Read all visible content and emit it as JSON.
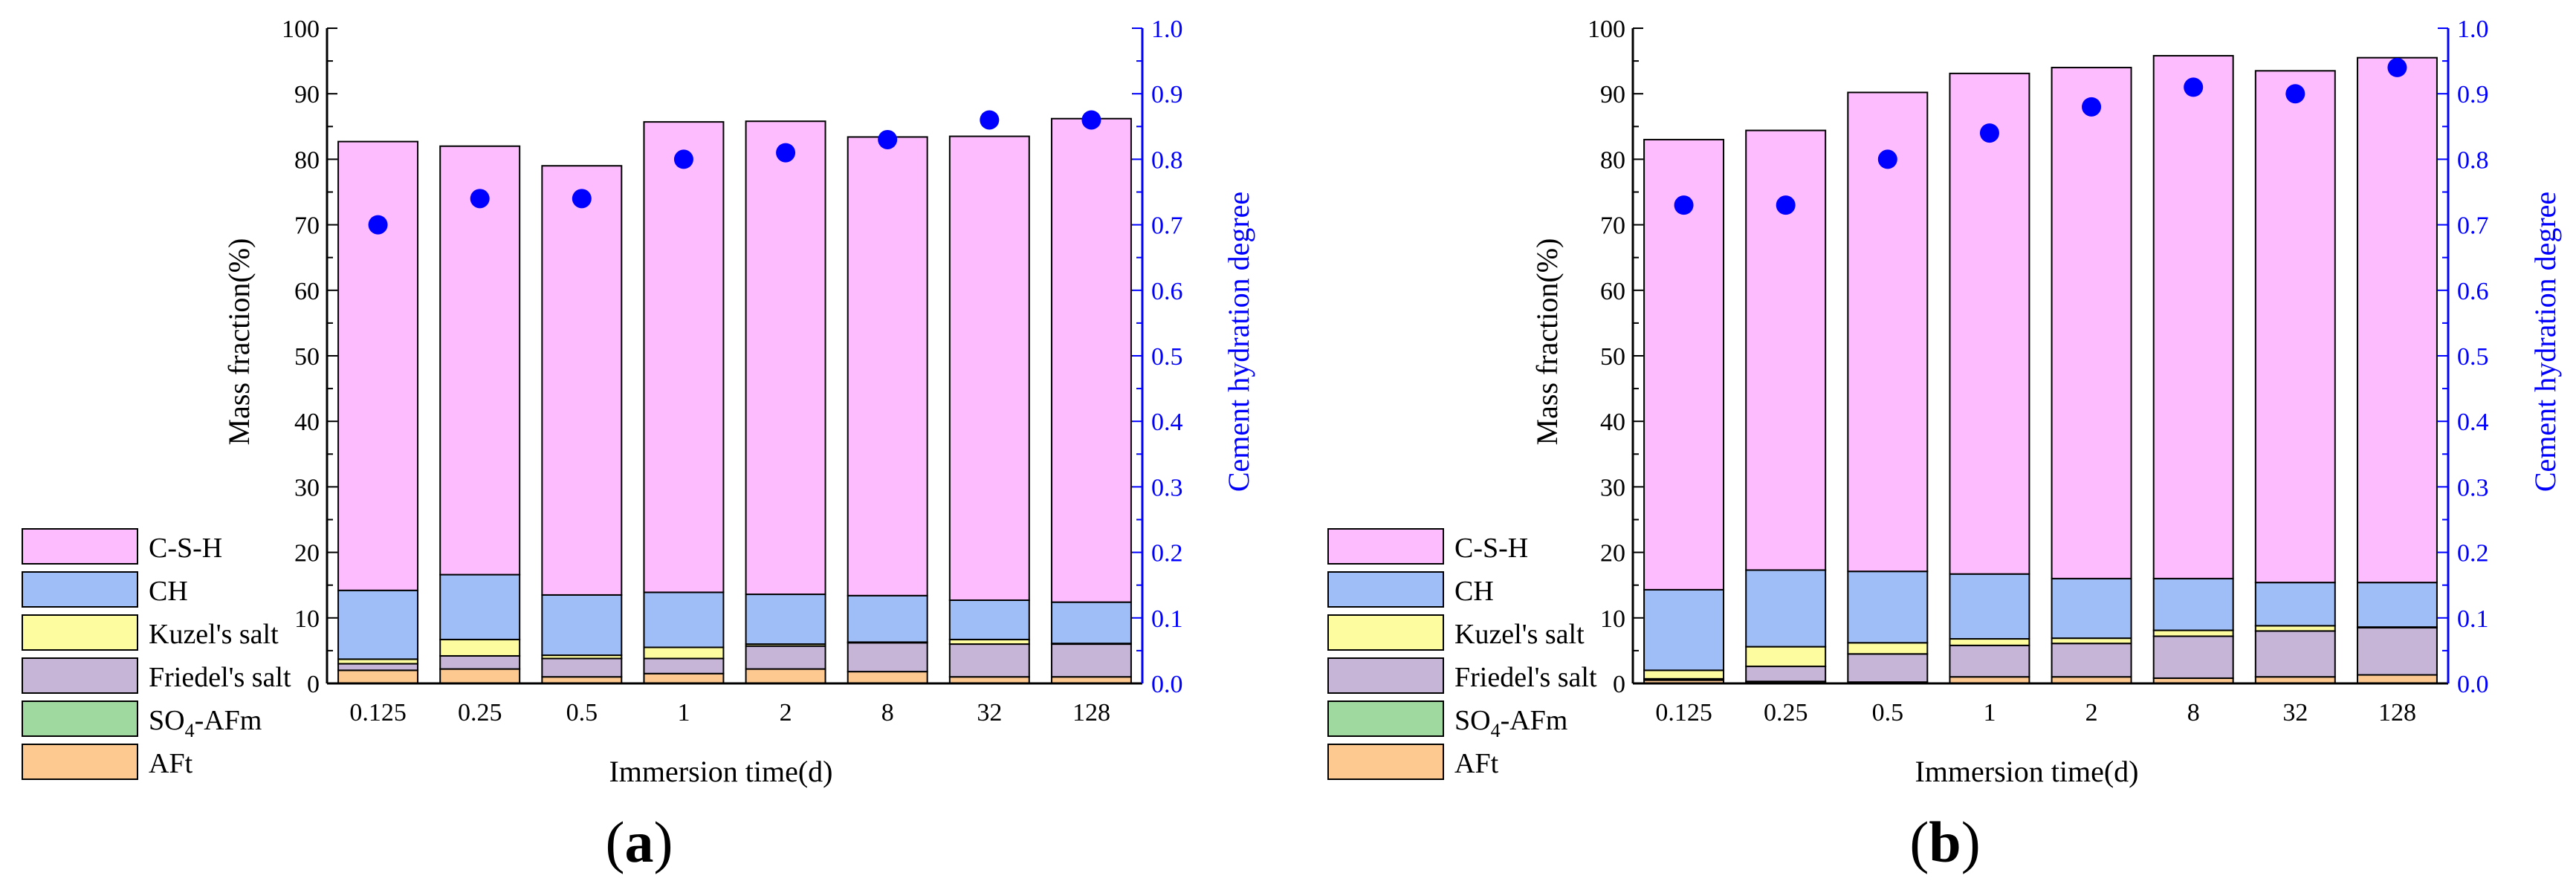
{
  "chart_data": [
    {
      "type": "bar",
      "stacked": true,
      "panel_label": "a",
      "xlabel": "Immersion time(d)",
      "ylabel": "Mass fraction(%)",
      "y2label": "Cement hydration degree",
      "ylim": [
        0,
        100
      ],
      "y2lim": [
        0,
        1.0
      ],
      "categories": [
        "0.125",
        "0.25",
        "0.5",
        "1",
        "2",
        "8",
        "32",
        "128"
      ],
      "series": [
        {
          "name": "AFt",
          "color": "#fdc991",
          "values": [
            2.0,
            2.2,
            1.0,
            1.5,
            2.2,
            1.8,
            1.0,
            1.0
          ]
        },
        {
          "name": "SO4-AFm",
          "color": "#9fd99f",
          "values": [
            0,
            0,
            0,
            0,
            0,
            0,
            0,
            0
          ]
        },
        {
          "name": "Friedel's salt",
          "color": "#c7b5d8",
          "values": [
            1.0,
            2.0,
            2.8,
            2.3,
            3.5,
            4.4,
            5.0,
            5.0
          ]
        },
        {
          "name": "Kuzel's salt",
          "color": "#fdfd9f",
          "values": [
            0.7,
            2.5,
            0.5,
            1.7,
            0.3,
            0.1,
            0.7,
            0.1
          ]
        },
        {
          "name": "CH",
          "color": "#9fbef7",
          "values": [
            10.5,
            9.9,
            9.2,
            8.4,
            7.6,
            7.1,
            6.0,
            6.3
          ]
        },
        {
          "name": "C-S-H",
          "color": "#fdbcfd",
          "values": [
            68.5,
            65.4,
            65.5,
            71.8,
            72.2,
            70.0,
            70.8,
            73.8
          ]
        }
      ],
      "hydration_degree": [
        0.7,
        0.74,
        0.74,
        0.8,
        0.81,
        0.83,
        0.86,
        0.86
      ],
      "hydration_color": "#0000ff"
    },
    {
      "type": "bar",
      "stacked": true,
      "panel_label": "b",
      "xlabel": "Immersion time(d)",
      "ylabel": "Mass fraction(%)",
      "y2label": "Cement hydration degree",
      "ylim": [
        0,
        100
      ],
      "y2lim": [
        0,
        1.0
      ],
      "categories": [
        "0.125",
        "0.25",
        "0.5",
        "1",
        "2",
        "8",
        "32",
        "128"
      ],
      "series": [
        {
          "name": "AFt",
          "color": "#fdc991",
          "values": [
            0.5,
            0.3,
            0.2,
            1.0,
            1.0,
            0.8,
            1.0,
            1.3
          ]
        },
        {
          "name": "SO4-AFm",
          "color": "#9fd99f",
          "values": [
            0,
            0,
            0,
            0,
            0,
            0,
            0,
            0
          ]
        },
        {
          "name": "Friedel's salt",
          "color": "#c7b5d8",
          "values": [
            0.2,
            2.3,
            4.3,
            4.8,
            5.1,
            6.4,
            7.0,
            7.2
          ]
        },
        {
          "name": "Kuzel's salt",
          "color": "#fdfd9f",
          "values": [
            1.3,
            3.0,
            1.7,
            1.0,
            0.8,
            0.9,
            0.8,
            0.1
          ]
        },
        {
          "name": "CH",
          "color": "#9fbef7",
          "values": [
            12.3,
            11.7,
            10.9,
            9.9,
            9.1,
            7.9,
            6.6,
            6.8
          ]
        },
        {
          "name": "C-S-H",
          "color": "#fdbcfd",
          "values": [
            68.7,
            67.1,
            73.1,
            76.4,
            78.0,
            79.8,
            78.1,
            80.1
          ]
        }
      ],
      "hydration_degree": [
        0.73,
        0.73,
        0.8,
        0.84,
        0.88,
        0.91,
        0.9,
        0.94
      ],
      "hydration_color": "#0000ff"
    }
  ],
  "legend": {
    "items": [
      {
        "label": "C-S-H",
        "color": "#fdbcfd"
      },
      {
        "label": "CH",
        "color": "#9fbef7"
      },
      {
        "label": "Kuzel's salt",
        "color": "#fdfd9f"
      },
      {
        "label": "Friedel's salt",
        "color": "#c7b5d8"
      },
      {
        "label_main": "SO",
        "label_sub": "4",
        "label_rest": "-AFm",
        "color": "#9fd99f"
      },
      {
        "label": "AFt",
        "color": "#fdc991"
      }
    ]
  }
}
